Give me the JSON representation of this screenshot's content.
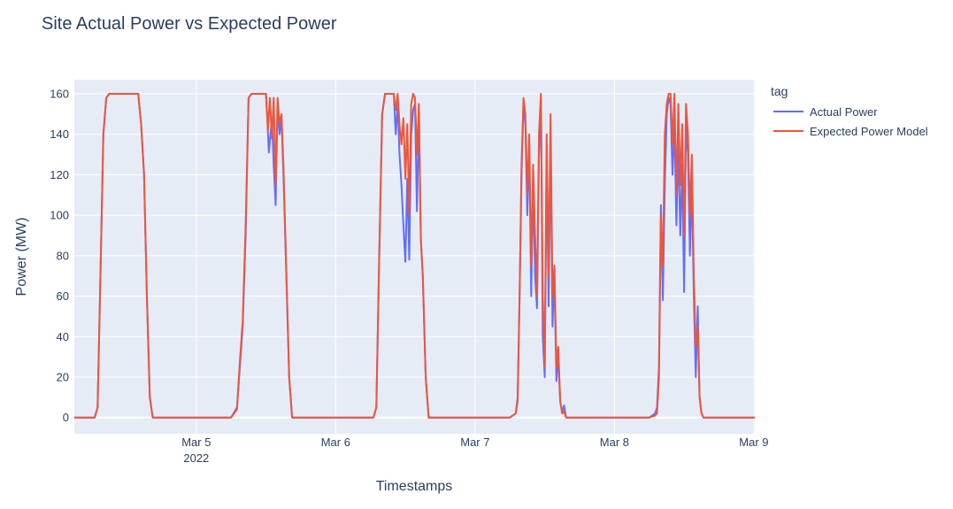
{
  "chart_data": {
    "type": "line",
    "title": "Site Actual Power vs Expected Power",
    "xlabel": "Timestamps",
    "ylabel": "Power (MW)",
    "xlim": [
      "2022-03-04 03:00",
      "2022-03-09 00:10"
    ],
    "ylim": [
      -8,
      167
    ],
    "y_ticks": [
      0,
      20,
      40,
      60,
      80,
      100,
      120,
      140,
      160
    ],
    "x_ticks": [
      {
        "date": "2022-03-05",
        "label": "Mar 5",
        "sublabel": "2022"
      },
      {
        "date": "2022-03-06",
        "label": "Mar 6"
      },
      {
        "date": "2022-03-07",
        "label": "Mar 7"
      },
      {
        "date": "2022-03-08",
        "label": "Mar 8"
      },
      {
        "date": "2022-03-09",
        "label": "Mar 9"
      }
    ],
    "grid": true,
    "legend": {
      "title": "tag",
      "position": "right"
    },
    "series": [
      {
        "name": "Actual Power",
        "color": "#636efa",
        "points": [
          [
            "2022-03-04 03:00",
            0
          ],
          [
            "2022-03-04 06:30",
            0
          ],
          [
            "2022-03-04 07:00",
            5
          ],
          [
            "2022-03-04 07:30",
            70
          ],
          [
            "2022-03-04 08:00",
            140
          ],
          [
            "2022-03-04 08:30",
            158
          ],
          [
            "2022-03-04 09:00",
            160
          ],
          [
            "2022-03-04 14:00",
            160
          ],
          [
            "2022-03-04 14:30",
            145
          ],
          [
            "2022-03-04 15:00",
            120
          ],
          [
            "2022-03-04 15:30",
            60
          ],
          [
            "2022-03-04 16:00",
            10
          ],
          [
            "2022-03-04 16:30",
            0
          ],
          [
            "2022-03-05 06:00",
            0
          ],
          [
            "2022-03-05 07:00",
            5
          ],
          [
            "2022-03-05 07:30",
            25
          ],
          [
            "2022-03-05 08:00",
            45
          ],
          [
            "2022-03-05 08:30",
            90
          ],
          [
            "2022-03-05 09:00",
            158
          ],
          [
            "2022-03-05 09:30",
            160
          ],
          [
            "2022-03-05 12:00",
            160
          ],
          [
            "2022-03-05 12:30",
            131
          ],
          [
            "2022-03-05 13:00",
            148
          ],
          [
            "2022-03-05 13:20",
            125
          ],
          [
            "2022-03-05 13:40",
            105
          ],
          [
            "2022-03-05 14:00",
            155
          ],
          [
            "2022-03-05 14:20",
            140
          ],
          [
            "2022-03-05 14:40",
            148
          ],
          [
            "2022-03-05 15:00",
            120
          ],
          [
            "2022-03-05 15:30",
            70
          ],
          [
            "2022-03-05 16:00",
            20
          ],
          [
            "2022-03-05 16:30",
            0
          ],
          [
            "2022-03-06 06:30",
            0
          ],
          [
            "2022-03-06 07:00",
            5
          ],
          [
            "2022-03-06 07:30",
            80
          ],
          [
            "2022-03-06 08:00",
            150
          ],
          [
            "2022-03-06 08:30",
            160
          ],
          [
            "2022-03-06 10:00",
            160
          ],
          [
            "2022-03-06 10:20",
            140
          ],
          [
            "2022-03-06 10:40",
            155
          ],
          [
            "2022-03-06 11:00",
            130
          ],
          [
            "2022-03-06 11:20",
            115
          ],
          [
            "2022-03-06 11:40",
            95
          ],
          [
            "2022-03-06 12:00",
            77
          ],
          [
            "2022-03-06 12:20",
            118
          ],
          [
            "2022-03-06 12:40",
            78
          ],
          [
            "2022-03-06 13:00",
            140
          ],
          [
            "2022-03-06 13:20",
            152
          ],
          [
            "2022-03-06 13:40",
            155
          ],
          [
            "2022-03-06 14:00",
            102
          ],
          [
            "2022-03-06 14:20",
            150
          ],
          [
            "2022-03-06 14:40",
            88
          ],
          [
            "2022-03-06 15:00",
            70
          ],
          [
            "2022-03-06 15:30",
            20
          ],
          [
            "2022-03-06 16:00",
            0
          ],
          [
            "2022-03-07 06:00",
            0
          ],
          [
            "2022-03-07 07:00",
            2
          ],
          [
            "2022-03-07 07:20",
            10
          ],
          [
            "2022-03-07 07:40",
            60
          ],
          [
            "2022-03-07 08:00",
            120
          ],
          [
            "2022-03-07 08:20",
            155
          ],
          [
            "2022-03-07 08:40",
            145
          ],
          [
            "2022-03-07 09:00",
            100
          ],
          [
            "2022-03-07 09:20",
            135
          ],
          [
            "2022-03-07 09:40",
            60
          ],
          [
            "2022-03-07 10:00",
            115
          ],
          [
            "2022-03-07 10:20",
            70
          ],
          [
            "2022-03-07 10:40",
            54
          ],
          [
            "2022-03-07 11:00",
            130
          ],
          [
            "2022-03-07 11:20",
            158
          ],
          [
            "2022-03-07 11:40",
            40
          ],
          [
            "2022-03-07 12:00",
            20
          ],
          [
            "2022-03-07 12:20",
            130
          ],
          [
            "2022-03-07 12:40",
            55
          ],
          [
            "2022-03-07 13:00",
            138
          ],
          [
            "2022-03-07 13:20",
            45
          ],
          [
            "2022-03-07 13:40",
            70
          ],
          [
            "2022-03-07 14:00",
            18
          ],
          [
            "2022-03-07 14:20",
            30
          ],
          [
            "2022-03-07 14:40",
            8
          ],
          [
            "2022-03-07 15:00",
            3
          ],
          [
            "2022-03-07 15:20",
            6
          ],
          [
            "2022-03-07 15:40",
            0
          ],
          [
            "2022-03-08 06:00",
            0
          ],
          [
            "2022-03-08 07:00",
            2
          ],
          [
            "2022-03-08 07:20",
            5
          ],
          [
            "2022-03-08 07:40",
            25
          ],
          [
            "2022-03-08 08:00",
            105
          ],
          [
            "2022-03-08 08:20",
            58
          ],
          [
            "2022-03-08 08:40",
            115
          ],
          [
            "2022-03-08 09:00",
            150
          ],
          [
            "2022-03-08 09:20",
            158
          ],
          [
            "2022-03-08 09:40",
            155
          ],
          [
            "2022-03-08 10:00",
            120
          ],
          [
            "2022-03-08 10:20",
            145
          ],
          [
            "2022-03-08 10:40",
            95
          ],
          [
            "2022-03-08 11:00",
            135
          ],
          [
            "2022-03-08 11:20",
            90
          ],
          [
            "2022-03-08 11:40",
            125
          ],
          [
            "2022-03-08 12:00",
            62
          ],
          [
            "2022-03-08 12:20",
            145
          ],
          [
            "2022-03-08 12:40",
            130
          ],
          [
            "2022-03-08 13:00",
            80
          ],
          [
            "2022-03-08 13:20",
            115
          ],
          [
            "2022-03-08 13:40",
            60
          ],
          [
            "2022-03-08 14:00",
            20
          ],
          [
            "2022-03-08 14:20",
            55
          ],
          [
            "2022-03-08 14:40",
            10
          ],
          [
            "2022-03-08 15:00",
            2
          ],
          [
            "2022-03-08 15:20",
            0
          ],
          [
            "2022-03-09 00:10",
            0
          ]
        ]
      },
      {
        "name": "Expected Power Model",
        "color": "#ef553b",
        "points": [
          [
            "2022-03-04 03:00",
            0
          ],
          [
            "2022-03-04 06:30",
            0
          ],
          [
            "2022-03-04 07:00",
            5
          ],
          [
            "2022-03-04 07:30",
            70
          ],
          [
            "2022-03-04 08:00",
            140
          ],
          [
            "2022-03-04 08:30",
            158
          ],
          [
            "2022-03-04 09:00",
            160
          ],
          [
            "2022-03-04 14:00",
            160
          ],
          [
            "2022-03-04 14:30",
            145
          ],
          [
            "2022-03-04 15:00",
            120
          ],
          [
            "2022-03-04 15:30",
            60
          ],
          [
            "2022-03-04 16:00",
            10
          ],
          [
            "2022-03-04 16:30",
            0
          ],
          [
            "2022-03-05 06:00",
            0
          ],
          [
            "2022-03-05 07:00",
            4
          ],
          [
            "2022-03-05 07:30",
            28
          ],
          [
            "2022-03-05 08:00",
            48
          ],
          [
            "2022-03-05 08:30",
            95
          ],
          [
            "2022-03-05 09:00",
            158
          ],
          [
            "2022-03-05 09:30",
            160
          ],
          [
            "2022-03-05 12:00",
            160
          ],
          [
            "2022-03-05 12:20",
            142
          ],
          [
            "2022-03-05 12:40",
            158
          ],
          [
            "2022-03-05 13:00",
            138
          ],
          [
            "2022-03-05 13:20",
            158
          ],
          [
            "2022-03-05 13:40",
            115
          ],
          [
            "2022-03-05 14:00",
            158
          ],
          [
            "2022-03-05 14:20",
            145
          ],
          [
            "2022-03-05 14:40",
            150
          ],
          [
            "2022-03-05 15:00",
            125
          ],
          [
            "2022-03-05 15:30",
            72
          ],
          [
            "2022-03-05 16:00",
            20
          ],
          [
            "2022-03-05 16:30",
            0
          ],
          [
            "2022-03-06 06:30",
            0
          ],
          [
            "2022-03-06 07:00",
            5
          ],
          [
            "2022-03-06 07:30",
            80
          ],
          [
            "2022-03-06 08:00",
            150
          ],
          [
            "2022-03-06 08:30",
            160
          ],
          [
            "2022-03-06 10:00",
            160
          ],
          [
            "2022-03-06 10:20",
            152
          ],
          [
            "2022-03-06 10:40",
            160
          ],
          [
            "2022-03-06 11:00",
            145
          ],
          [
            "2022-03-06 11:20",
            135
          ],
          [
            "2022-03-06 11:40",
            148
          ],
          [
            "2022-03-06 12:00",
            118
          ],
          [
            "2022-03-06 12:20",
            145
          ],
          [
            "2022-03-06 12:40",
            100
          ],
          [
            "2022-03-06 13:00",
            155
          ],
          [
            "2022-03-06 13:20",
            160
          ],
          [
            "2022-03-06 13:40",
            158
          ],
          [
            "2022-03-06 14:00",
            130
          ],
          [
            "2022-03-06 14:20",
            155
          ],
          [
            "2022-03-06 14:40",
            88
          ],
          [
            "2022-03-06 15:00",
            70
          ],
          [
            "2022-03-06 15:30",
            20
          ],
          [
            "2022-03-06 16:00",
            0
          ],
          [
            "2022-03-07 06:00",
            0
          ],
          [
            "2022-03-07 07:00",
            2
          ],
          [
            "2022-03-07 07:20",
            8
          ],
          [
            "2022-03-07 07:40",
            60
          ],
          [
            "2022-03-07 08:00",
            125
          ],
          [
            "2022-03-07 08:20",
            158
          ],
          [
            "2022-03-07 08:40",
            150
          ],
          [
            "2022-03-07 09:00",
            110
          ],
          [
            "2022-03-07 09:20",
            140
          ],
          [
            "2022-03-07 09:40",
            75
          ],
          [
            "2022-03-07 10:00",
            125
          ],
          [
            "2022-03-07 10:20",
            90
          ],
          [
            "2022-03-07 10:40",
            60
          ],
          [
            "2022-03-07 11:00",
            140
          ],
          [
            "2022-03-07 11:20",
            160
          ],
          [
            "2022-03-07 11:40",
            60
          ],
          [
            "2022-03-07 12:00",
            25
          ],
          [
            "2022-03-07 12:20",
            140
          ],
          [
            "2022-03-07 12:40",
            70
          ],
          [
            "2022-03-07 13:00",
            150
          ],
          [
            "2022-03-07 13:20",
            60
          ],
          [
            "2022-03-07 13:40",
            75
          ],
          [
            "2022-03-07 14:00",
            25
          ],
          [
            "2022-03-07 14:20",
            35
          ],
          [
            "2022-03-07 14:40",
            8
          ],
          [
            "2022-03-07 15:00",
            2
          ],
          [
            "2022-03-07 15:20",
            3
          ],
          [
            "2022-03-07 15:40",
            0
          ],
          [
            "2022-03-08 06:00",
            0
          ],
          [
            "2022-03-08 07:00",
            1
          ],
          [
            "2022-03-08 07:20",
            2
          ],
          [
            "2022-03-08 07:40",
            20
          ],
          [
            "2022-03-08 08:00",
            100
          ],
          [
            "2022-03-08 08:20",
            75
          ],
          [
            "2022-03-08 08:40",
            140
          ],
          [
            "2022-03-08 09:00",
            155
          ],
          [
            "2022-03-08 09:20",
            160
          ],
          [
            "2022-03-08 09:40",
            160
          ],
          [
            "2022-03-08 10:00",
            135
          ],
          [
            "2022-03-08 10:20",
            160
          ],
          [
            "2022-03-08 10:40",
            110
          ],
          [
            "2022-03-08 11:00",
            155
          ],
          [
            "2022-03-08 11:20",
            115
          ],
          [
            "2022-03-08 11:40",
            145
          ],
          [
            "2022-03-08 12:00",
            90
          ],
          [
            "2022-03-08 12:20",
            155
          ],
          [
            "2022-03-08 12:40",
            140
          ],
          [
            "2022-03-08 13:00",
            100
          ],
          [
            "2022-03-08 13:20",
            130
          ],
          [
            "2022-03-08 13:40",
            70
          ],
          [
            "2022-03-08 14:00",
            35
          ],
          [
            "2022-03-08 14:20",
            45
          ],
          [
            "2022-03-08 14:40",
            10
          ],
          [
            "2022-03-08 15:00",
            2
          ],
          [
            "2022-03-08 15:20",
            0
          ],
          [
            "2022-03-09 00:10",
            0
          ]
        ]
      }
    ]
  }
}
